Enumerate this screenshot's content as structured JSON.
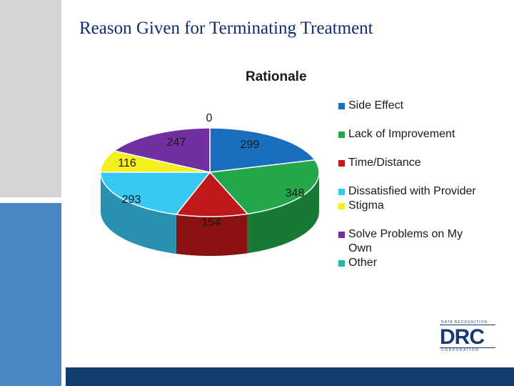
{
  "slide": {
    "title": "Reason Given for Terminating Treatment"
  },
  "chart_data": {
    "type": "pie",
    "title": "Rationale",
    "slices": [
      {
        "label": "Side Effect",
        "value": 299,
        "color": "#1a6ec0"
      },
      {
        "label": "Lack of Improvement",
        "value": 348,
        "color": "#22a84a"
      },
      {
        "label": "Time/Distance",
        "value": 154,
        "color": "#c01818"
      },
      {
        "label": "Dissatisfied with Provider",
        "value": 293,
        "color": "#38c8f4"
      },
      {
        "label": "Stigma",
        "value": 116,
        "color": "#f4f020"
      },
      {
        "label": "Solve Problems on My Own",
        "value": 247,
        "color": "#7030a0"
      },
      {
        "label": "Other",
        "value": 0,
        "color": "#22b8a8"
      }
    ],
    "data_labels": [
      "299",
      "348",
      "154",
      "293",
      "116",
      "247",
      "0"
    ],
    "legend": {
      "position": "right",
      "items": [
        {
          "label": "Side Effect",
          "color": "#1a6ec0"
        },
        {
          "label": "Lack of Improvement",
          "color": "#22a84a"
        },
        {
          "label": "Time/Distance",
          "color": "#c01818"
        },
        {
          "label": "Dissatisfied with Provider",
          "color": "#38c8f4"
        },
        {
          "label": "Stigma",
          "color": "#f4f020"
        },
        {
          "label": "Solve Problems on My Own",
          "color": "#7030a0"
        },
        {
          "label": "Other",
          "color": "#22b8a8"
        }
      ]
    }
  },
  "logo": {
    "top_text": "DATA RECOGNITION",
    "main_text": "DRC",
    "bottom_text": "CORPORATION"
  }
}
